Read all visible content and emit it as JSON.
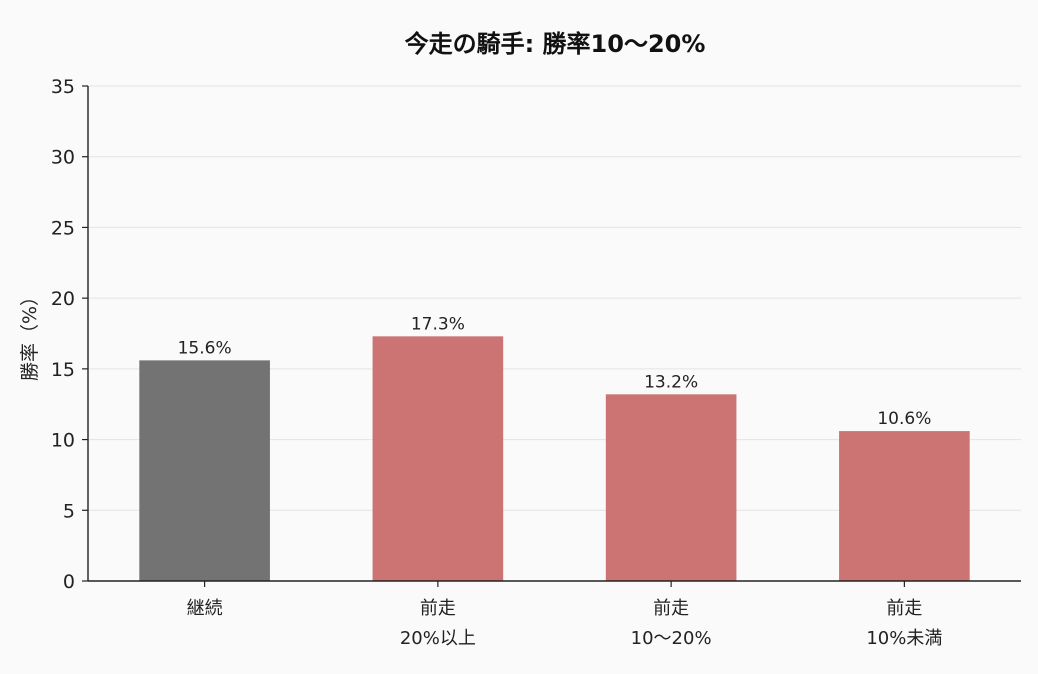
{
  "chart_data": {
    "type": "bar",
    "title": "今走の騎手: 勝率10〜20%",
    "ylabel": "勝率（%）",
    "xlabel": "",
    "ylim": [
      0,
      35
    ],
    "yticks": [
      0,
      5,
      10,
      15,
      20,
      25,
      30,
      35
    ],
    "grid": true,
    "categories": [
      [
        "継続"
      ],
      [
        "前走",
        "20%以上"
      ],
      [
        "前走",
        "10〜20%"
      ],
      [
        "前走",
        "10%未満"
      ]
    ],
    "values": [
      15.6,
      17.3,
      13.2,
      10.6
    ],
    "value_labels": [
      "15.6%",
      "17.3%",
      "13.2%",
      "10.6%"
    ],
    "colors": [
      "#737373",
      "#cc7474",
      "#cc7474",
      "#cc7474"
    ]
  }
}
